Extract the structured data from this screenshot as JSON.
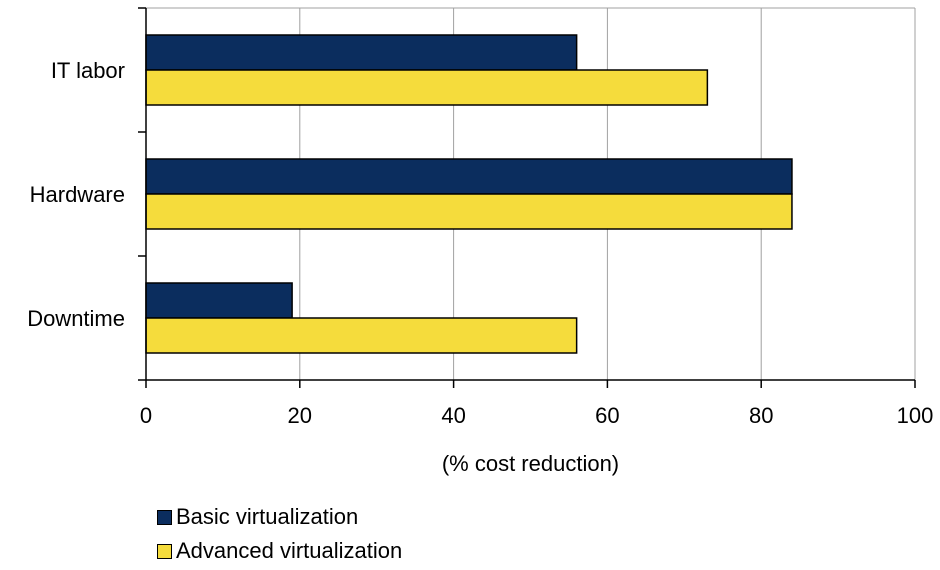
{
  "chart_data": {
    "type": "bar",
    "orientation": "horizontal",
    "categories": [
      "IT labor",
      "Hardware",
      "Downtime"
    ],
    "series": [
      {
        "name": "Basic virtualization",
        "values": [
          56,
          84,
          19
        ],
        "color": "#0b2d5e"
      },
      {
        "name": "Advanced virtualization",
        "values": [
          73,
          84,
          56
        ],
        "color": "#f5dc3c"
      }
    ],
    "title": "",
    "xlabel": "(% cost reduction)",
    "ylabel": "",
    "xlim": [
      0,
      100
    ],
    "xticks": [
      0,
      20,
      40,
      60,
      80,
      100
    ],
    "grid": "vertical",
    "legend_position": "bottom-left"
  }
}
